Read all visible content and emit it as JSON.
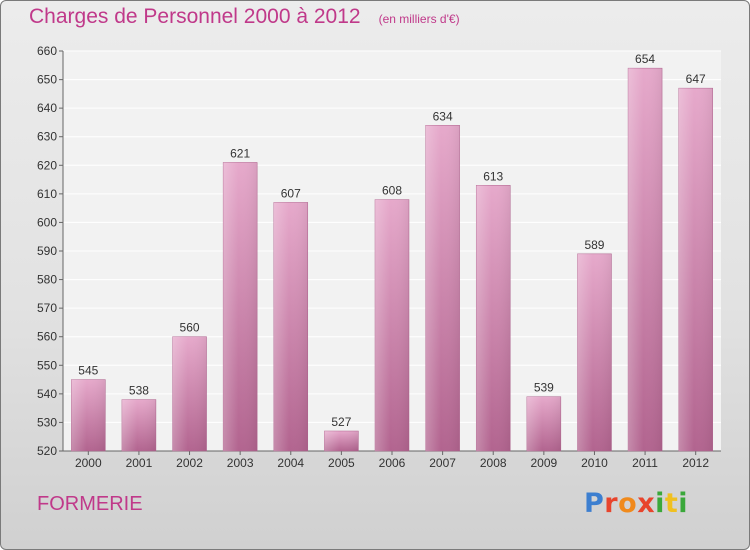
{
  "header": {
    "title": "Charges de Personnel 2000 à 2012",
    "unit": "(en milliers d'€)"
  },
  "footer": {
    "place": "FORMERIE"
  },
  "logo": {
    "text": "Proxiti",
    "letter_colors": [
      "#3d7fd0",
      "#e8442c",
      "#f08a1c",
      "#e8442c",
      "#3aa83a",
      "#f0c020",
      "#3aa83a"
    ]
  },
  "colors": {
    "bar": "#c97aa8",
    "bar_light": "#e6a9cb",
    "bar_dark": "#b2648f",
    "text": "#333333",
    "accent": "#c0398a"
  },
  "chart_data": {
    "type": "bar",
    "title": "Charges de Personnel 2000 à 2012",
    "subtitle": "(en milliers d'€)",
    "xlabel": "",
    "ylabel": "",
    "categories": [
      "2000",
      "2001",
      "2002",
      "2003",
      "2004",
      "2005",
      "2006",
      "2007",
      "2008",
      "2009",
      "2010",
      "2011",
      "2012"
    ],
    "values": [
      545,
      538,
      560,
      621,
      607,
      527,
      608,
      634,
      613,
      539,
      589,
      654,
      647
    ],
    "ylim": [
      520,
      660
    ],
    "yticks": [
      520,
      530,
      540,
      550,
      560,
      570,
      580,
      590,
      600,
      610,
      620,
      630,
      640,
      650,
      660
    ],
    "grid": true,
    "legend": "none"
  }
}
